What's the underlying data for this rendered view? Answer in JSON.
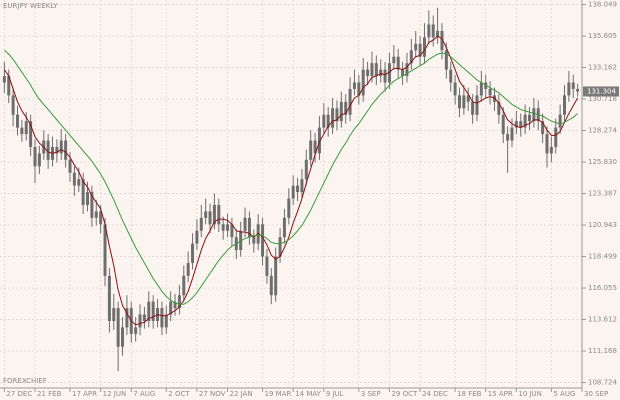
{
  "chart_data": {
    "type": "candlestick",
    "title": "EURJPY WEEKLY",
    "watermark": "FOREXCHIEF",
    "color": "#6e6e6e",
    "grid": true,
    "ylim": [
      108.3,
      138.4
    ],
    "yticks": [
      138.049,
      135.605,
      133.162,
      130.718,
      128.274,
      {
        "value": 125.83,
        "label": "125.830"
      },
      123.387,
      120.943,
      118.499,
      116.055,
      113.612,
      111.168,
      108.724
    ],
    "xlim": [
      -1,
      132
    ],
    "xticks": [
      {
        "value": 0,
        "label": "27 DEC"
      },
      {
        "value": 7,
        "label": "21 FEB"
      },
      {
        "value": 15,
        "label": "17 APR"
      },
      {
        "value": 22,
        "label": "12 JUN"
      },
      {
        "value": 29,
        "label": "7 AUG"
      },
      {
        "value": 37,
        "label": "2 OCT"
      },
      {
        "value": 44,
        "label": "27 NOV"
      },
      {
        "value": 51,
        "label": "22 JAN"
      },
      {
        "value": 59,
        "label": "19 MAR"
      },
      {
        "value": 66,
        "label": "14 MAY"
      },
      {
        "value": 73,
        "label": "9 JUL"
      },
      {
        "value": 81,
        "label": "3 SEP"
      },
      {
        "value": 88,
        "label": "29 OCT"
      },
      {
        "value": 95,
        "label": "24 DEC"
      },
      {
        "value": 103,
        "label": "18 FEB"
      },
      {
        "value": 110,
        "label": "15 APR"
      },
      {
        "value": 117,
        "label": "10 JUN"
      },
      {
        "value": 125,
        "label": "5 AUG"
      },
      {
        "value": 132,
        "label": "30 SEP"
      }
    ],
    "last_price": 131.304,
    "candles": [
      [
        132.0,
        133.6,
        131.2,
        132.5
      ],
      [
        132.5,
        133.0,
        130.4,
        131.0
      ],
      [
        131.0,
        131.6,
        128.6,
        129.5
      ],
      [
        129.5,
        130.2,
        127.9,
        128.5
      ],
      [
        128.5,
        129.1,
        127.4,
        128.0
      ],
      [
        128.0,
        129.7,
        127.5,
        129.0
      ],
      [
        129.0,
        129.5,
        126.3,
        127.0
      ],
      [
        127.0,
        127.6,
        124.2,
        125.5
      ],
      [
        125.5,
        127.1,
        124.9,
        126.5
      ],
      [
        126.5,
        128.3,
        126.0,
        127.5
      ],
      [
        127.5,
        128.0,
        125.3,
        126.0
      ],
      [
        126.0,
        127.8,
        125.5,
        127.0
      ],
      [
        127.0,
        127.6,
        125.8,
        126.5
      ],
      [
        126.5,
        128.4,
        126.0,
        127.5
      ],
      [
        127.5,
        128.0,
        125.4,
        126.0
      ],
      [
        126.0,
        126.6,
        124.3,
        125.0
      ],
      [
        125.0,
        125.5,
        123.2,
        124.0
      ],
      [
        124.0,
        125.4,
        123.5,
        124.5
      ],
      [
        124.5,
        125.0,
        121.8,
        122.5
      ],
      [
        122.5,
        124.3,
        122.0,
        123.5
      ],
      [
        123.5,
        124.0,
        120.8,
        121.5
      ],
      [
        121.5,
        122.9,
        120.9,
        122.0
      ],
      [
        122.0,
        122.5,
        120.3,
        121.0
      ],
      [
        121.0,
        121.5,
        116.2,
        117.0
      ],
      [
        117.0,
        117.6,
        112.6,
        113.5
      ],
      [
        113.5,
        115.6,
        112.8,
        114.5
      ],
      [
        114.5,
        115.0,
        109.6,
        111.5
      ],
      [
        111.5,
        113.8,
        110.8,
        113.0
      ],
      [
        113.0,
        115.5,
        112.4,
        114.5
      ],
      [
        114.5,
        115.0,
        111.8,
        112.5
      ],
      [
        112.5,
        113.8,
        111.9,
        113.0
      ],
      [
        113.0,
        114.8,
        112.4,
        114.0
      ],
      [
        114.0,
        114.6,
        112.9,
        113.5
      ],
      [
        113.5,
        115.8,
        113.0,
        115.0
      ],
      [
        115.0,
        115.5,
        112.9,
        113.5
      ],
      [
        113.5,
        115.2,
        113.0,
        114.5
      ],
      [
        114.5,
        115.0,
        112.4,
        113.0
      ],
      [
        113.0,
        114.7,
        112.5,
        114.0
      ],
      [
        114.0,
        115.8,
        113.5,
        115.0
      ],
      [
        115.0,
        115.6,
        113.9,
        114.5
      ],
      [
        114.5,
        116.3,
        114.0,
        115.5
      ],
      [
        115.5,
        117.8,
        115.0,
        117.0
      ],
      [
        117.0,
        118.9,
        116.5,
        118.0
      ],
      [
        118.0,
        120.3,
        117.5,
        119.5
      ],
      [
        119.5,
        121.4,
        119.0,
        120.5
      ],
      [
        120.5,
        122.5,
        120.0,
        121.5
      ],
      [
        121.5,
        123.0,
        121.0,
        122.0
      ],
      [
        122.0,
        122.6,
        120.3,
        121.0
      ],
      [
        121.0,
        123.4,
        120.6,
        122.5
      ],
      [
        122.5,
        123.0,
        120.4,
        121.0
      ],
      [
        121.0,
        121.6,
        119.8,
        120.5
      ],
      [
        120.5,
        121.8,
        120.0,
        121.0
      ],
      [
        121.0,
        121.5,
        119.3,
        120.0
      ],
      [
        120.0,
        120.6,
        118.3,
        119.0
      ],
      [
        119.0,
        121.2,
        118.5,
        120.5
      ],
      [
        120.5,
        122.3,
        120.0,
        121.5
      ],
      [
        121.5,
        122.0,
        119.4,
        120.0
      ],
      [
        120.0,
        120.6,
        118.8,
        119.5
      ],
      [
        119.5,
        121.8,
        119.0,
        121.0
      ],
      [
        121.0,
        121.5,
        117.8,
        118.5
      ],
      [
        118.5,
        119.1,
        116.4,
        117.0
      ],
      [
        117.0,
        117.6,
        114.8,
        115.5
      ],
      [
        115.5,
        119.2,
        115.0,
        118.5
      ],
      [
        118.5,
        120.7,
        118.0,
        120.0
      ],
      [
        120.0,
        122.2,
        119.5,
        121.5
      ],
      [
        121.5,
        123.8,
        121.0,
        123.0
      ],
      [
        123.0,
        124.8,
        122.5,
        124.0
      ],
      [
        124.0,
        124.6,
        122.8,
        123.5
      ],
      [
        123.5,
        125.3,
        123.0,
        124.5
      ],
      [
        124.5,
        126.8,
        124.0,
        126.0
      ],
      [
        126.0,
        128.3,
        125.5,
        127.5
      ],
      [
        127.5,
        128.1,
        125.8,
        126.5
      ],
      [
        126.5,
        129.4,
        126.0,
        128.5
      ],
      [
        128.5,
        130.4,
        128.0,
        129.5
      ],
      [
        129.5,
        130.1,
        127.8,
        128.5
      ],
      [
        128.5,
        130.8,
        128.0,
        130.0
      ],
      [
        130.0,
        130.6,
        128.3,
        129.0
      ],
      [
        129.0,
        131.3,
        128.5,
        130.5
      ],
      [
        130.5,
        131.1,
        128.8,
        129.5
      ],
      [
        129.5,
        132.4,
        129.0,
        131.5
      ],
      [
        131.5,
        133.0,
        131.0,
        132.0
      ],
      [
        132.0,
        132.6,
        130.3,
        131.0
      ],
      [
        131.0,
        133.9,
        130.5,
        133.0
      ],
      [
        133.0,
        133.6,
        131.8,
        132.5
      ],
      [
        132.5,
        134.4,
        132.0,
        133.5
      ],
      [
        133.5,
        134.1,
        131.8,
        132.5
      ],
      [
        132.5,
        133.8,
        132.0,
        133.0
      ],
      [
        133.0,
        133.6,
        131.3,
        132.0
      ],
      [
        132.0,
        134.3,
        131.5,
        133.5
      ],
      [
        133.5,
        134.9,
        133.0,
        134.0
      ],
      [
        134.0,
        134.6,
        132.3,
        133.0
      ],
      [
        133.0,
        133.6,
        131.8,
        132.5
      ],
      [
        132.5,
        134.3,
        132.0,
        133.5
      ],
      [
        133.5,
        135.4,
        133.0,
        134.5
      ],
      [
        134.5,
        136.0,
        134.0,
        135.0
      ],
      [
        135.0,
        135.6,
        133.3,
        134.0
      ],
      [
        134.0,
        136.6,
        133.5,
        135.5
      ],
      [
        135.5,
        137.6,
        135.0,
        136.5
      ],
      [
        136.5,
        137.2,
        134.8,
        135.5
      ],
      [
        135.5,
        137.8,
        135.0,
        136.0
      ],
      [
        136.0,
        136.6,
        133.8,
        134.5
      ],
      [
        134.5,
        135.1,
        132.3,
        133.0
      ],
      [
        133.0,
        133.6,
        131.3,
        132.0
      ],
      [
        132.0,
        132.6,
        130.3,
        131.0
      ],
      [
        131.0,
        131.6,
        129.3,
        130.0
      ],
      [
        130.0,
        131.8,
        129.5,
        131.0
      ],
      [
        131.0,
        131.6,
        129.8,
        130.5
      ],
      [
        130.5,
        131.1,
        128.8,
        129.5
      ],
      [
        129.5,
        131.8,
        129.0,
        131.0
      ],
      [
        131.0,
        132.9,
        130.5,
        132.0
      ],
      [
        132.0,
        132.6,
        130.8,
        131.5
      ],
      [
        131.5,
        132.1,
        130.3,
        131.0
      ],
      [
        131.0,
        131.6,
        129.8,
        130.5
      ],
      [
        130.5,
        131.1,
        128.8,
        129.5
      ],
      [
        129.5,
        130.1,
        127.3,
        128.0
      ],
      [
        128.0,
        128.6,
        125.0,
        127.5
      ],
      [
        127.5,
        129.2,
        127.0,
        128.5
      ],
      [
        128.5,
        129.8,
        128.0,
        129.0
      ],
      [
        129.0,
        129.6,
        127.8,
        128.5
      ],
      [
        128.5,
        130.3,
        128.0,
        129.5
      ],
      [
        129.5,
        130.1,
        128.3,
        129.0
      ],
      [
        129.0,
        130.8,
        128.5,
        130.0
      ],
      [
        130.0,
        130.6,
        128.3,
        129.0
      ],
      [
        129.0,
        129.6,
        127.3,
        128.0
      ],
      [
        128.0,
        128.6,
        125.4,
        126.5
      ],
      [
        126.5,
        127.8,
        125.8,
        127.0
      ],
      [
        127.0,
        129.2,
        126.5,
        128.5
      ],
      [
        128.5,
        130.3,
        128.0,
        129.5
      ],
      [
        129.5,
        131.8,
        129.0,
        131.0
      ],
      [
        131.0,
        132.9,
        130.5,
        132.0
      ],
      [
        132.0,
        132.6,
        130.8,
        131.5
      ],
      [
        131.5,
        131.9,
        130.9,
        131.304
      ]
    ],
    "lines": [
      {
        "color": "#8b1010",
        "values": [
          133.0,
          132.5,
          131.5,
          130.5,
          129.8,
          129.3,
          128.7,
          127.8,
          127.3,
          127.0,
          126.6,
          126.5,
          126.6,
          126.8,
          126.6,
          126.2,
          125.6,
          125.1,
          124.3,
          123.9,
          123.2,
          122.7,
          122.2,
          121.0,
          119.3,
          117.8,
          115.9,
          114.7,
          114.1,
          113.5,
          113.2,
          113.3,
          113.4,
          113.7,
          113.8,
          114.0,
          113.9,
          113.9,
          114.1,
          114.3,
          114.6,
          115.1,
          115.8,
          116.8,
          117.9,
          119.0,
          119.9,
          120.5,
          121.2,
          121.4,
          121.4,
          121.3,
          121.0,
          120.5,
          120.4,
          120.4,
          120.3,
          120.0,
          120.3,
          120.0,
          119.4,
          118.6,
          118.3,
          118.5,
          119.2,
          120.0,
          121.1,
          122.0,
          123.0,
          124.2,
          125.3,
          126.4,
          127.4,
          128.0,
          128.6,
          129.0,
          129.1,
          129.5,
          129.6,
          130.2,
          130.8,
          131.0,
          131.6,
          131.9,
          132.4,
          132.5,
          132.7,
          132.6,
          132.8,
          133.1,
          133.1,
          133.0,
          133.2,
          133.6,
          134.0,
          134.1,
          134.5,
          135.1,
          135.3,
          135.6,
          135.4,
          134.7,
          133.9,
          133.0,
          132.1,
          131.6,
          131.1,
          130.5,
          130.4,
          130.6,
          130.8,
          130.9,
          130.8,
          130.4,
          129.8,
          129.1,
          128.8,
          128.6,
          128.5,
          128.7,
          128.8,
          129.1,
          129.1,
          128.9,
          128.3,
          127.9,
          127.9,
          128.2,
          128.9,
          129.6,
          130.2,
          130.8
        ]
      },
      {
        "color": "#3a9a3a",
        "values": [
          134.5,
          134.2,
          133.8,
          133.3,
          132.8,
          132.3,
          131.8,
          131.2,
          130.7,
          130.3,
          129.9,
          129.5,
          129.1,
          128.7,
          128.3,
          127.9,
          127.5,
          127.1,
          126.7,
          126.3,
          125.9,
          125.4,
          124.9,
          124.3,
          123.6,
          122.9,
          122.1,
          121.3,
          120.6,
          119.9,
          119.2,
          118.6,
          118.0,
          117.4,
          116.8,
          116.3,
          115.8,
          115.4,
          115.1,
          114.9,
          114.8,
          114.8,
          115.0,
          115.3,
          115.7,
          116.2,
          116.7,
          117.2,
          117.7,
          118.2,
          118.6,
          119.0,
          119.3,
          119.5,
          119.7,
          119.9,
          120.0,
          120.1,
          120.2,
          120.1,
          119.9,
          119.6,
          119.5,
          119.5,
          119.6,
          119.8,
          120.1,
          120.5,
          120.9,
          121.5,
          122.1,
          122.8,
          123.5,
          124.2,
          124.9,
          125.6,
          126.2,
          126.8,
          127.3,
          127.9,
          128.4,
          128.8,
          129.3,
          129.8,
          130.3,
          130.7,
          131.1,
          131.4,
          131.8,
          132.1,
          132.3,
          132.5,
          132.7,
          132.9,
          133.1,
          133.3,
          133.5,
          133.8,
          134.0,
          134.2,
          134.3,
          134.2,
          134.0,
          133.7,
          133.4,
          133.1,
          132.8,
          132.5,
          132.2,
          132.0,
          131.8,
          131.6,
          131.4,
          131.2,
          130.9,
          130.6,
          130.3,
          130.1,
          129.9,
          129.8,
          129.7,
          129.6,
          129.5,
          129.4,
          129.2,
          129.0,
          128.9,
          128.8,
          128.9,
          129.1,
          129.3,
          129.6
        ]
      }
    ]
  }
}
